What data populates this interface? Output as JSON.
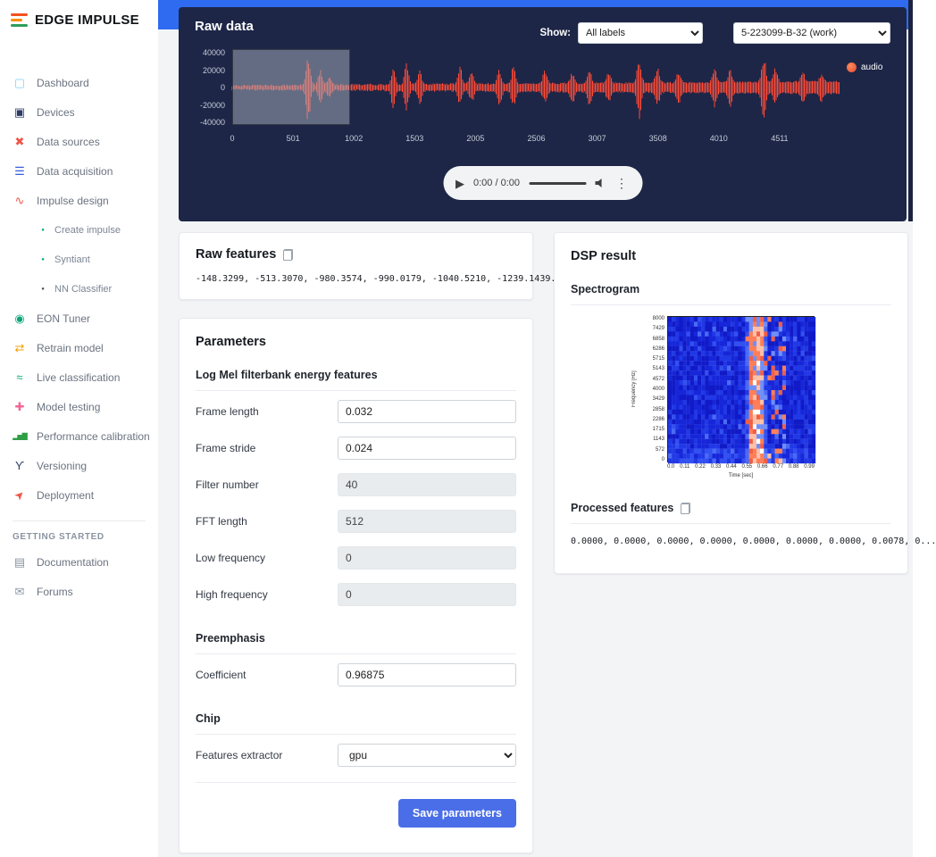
{
  "sidebar": {
    "logo_text": "EDGE IMPULSE",
    "nav_primary": [
      {
        "label": "Dashboard",
        "icon": "dashboard-icon"
      },
      {
        "label": "Devices",
        "icon": "devices-icon"
      },
      {
        "label": "Data sources",
        "icon": "data-sources-icon"
      },
      {
        "label": "Data acquisition",
        "icon": "data-acquisition-icon"
      },
      {
        "label": "Impulse design",
        "icon": "impulse-design-icon"
      }
    ],
    "impulse_sub": [
      {
        "label": "Create impulse",
        "icon": "bullet-icon"
      },
      {
        "label": "Syntiant",
        "icon": "bullet-icon"
      },
      {
        "label": "NN Classifier",
        "icon": "bullet-icon"
      }
    ],
    "nav_secondary": [
      {
        "label": "EON Tuner",
        "icon": "eon-tuner-icon"
      },
      {
        "label": "Retrain model",
        "icon": "retrain-model-icon"
      },
      {
        "label": "Live classification",
        "icon": "live-classification-icon"
      },
      {
        "label": "Model testing",
        "icon": "flask-icon"
      },
      {
        "label": "Performance calibration",
        "icon": "bar-chart-icon"
      },
      {
        "label": "Versioning",
        "icon": "branch-icon"
      },
      {
        "label": "Deployment",
        "icon": "rocket-icon"
      }
    ],
    "getting_started_label": "GETTING STARTED",
    "nav_bottom": [
      {
        "label": "Documentation",
        "icon": "document-icon"
      },
      {
        "label": "Forums",
        "icon": "chat-icon"
      }
    ]
  },
  "icons": {
    "dashboard-icon": "▢",
    "devices-icon": "▣",
    "data-sources-icon": "✖",
    "data-acquisition-icon": "☰",
    "impulse-design-icon": "∿",
    "bullet-icon": "●",
    "eon-tuner-icon": "◉",
    "retrain-model-icon": "⇄",
    "live-classification-icon": "≈",
    "flask-icon": "✚",
    "bar-chart-icon": "▂▅▇",
    "branch-icon": "ϒ",
    "rocket-icon": "➤",
    "document-icon": "▤",
    "chat-icon": "✉",
    "play-icon": "▶",
    "kebab-icon": "⋮"
  },
  "raw_data": {
    "title": "Raw data",
    "show_label": "Show:",
    "label_filter_value": "All labels",
    "sample_selector_value": "5-223099-B-32 (work)",
    "legend_label": "audio",
    "player_time": "0:00 / 0:00",
    "chart": {
      "type": "line",
      "series": "audio",
      "color": "#ff4b36",
      "y_ticks": [
        "40000",
        "20000",
        "0",
        "-20000",
        "-40000"
      ],
      "x_ticks": [
        "0",
        "501",
        "1002",
        "1503",
        "2005",
        "2506",
        "3007",
        "3508",
        "4010",
        "4511"
      ],
      "spikes": [
        [
          0.125,
          1.0
        ],
        [
          0.145,
          0.5
        ],
        [
          0.16,
          0.3
        ],
        [
          0.265,
          0.5
        ],
        [
          0.287,
          0.62
        ],
        [
          0.309,
          0.45
        ],
        [
          0.375,
          0.52
        ],
        [
          0.394,
          0.4
        ],
        [
          0.44,
          0.48
        ],
        [
          0.463,
          0.52
        ],
        [
          0.515,
          0.42
        ],
        [
          0.56,
          0.38
        ],
        [
          0.588,
          0.48
        ],
        [
          0.62,
          0.42
        ],
        [
          0.67,
          0.85
        ],
        [
          0.7,
          0.45
        ],
        [
          0.735,
          0.4
        ],
        [
          0.794,
          0.48
        ],
        [
          0.82,
          0.42
        ],
        [
          0.875,
          0.88
        ],
        [
          0.894,
          0.45
        ],
        [
          0.94,
          0.32
        ],
        [
          0.97,
          0.28
        ]
      ]
    }
  },
  "raw_features": {
    "title": "Raw features",
    "values": "-148.3299, -513.3070, -980.3574, -990.0179, -1040.5210, -1239.1439..."
  },
  "parameters": {
    "title": "Parameters",
    "sections": [
      {
        "heading": "Log Mel filterbank energy features",
        "fields": [
          {
            "label": "Frame length",
            "value": "0.032",
            "disabled": false
          },
          {
            "label": "Frame stride",
            "value": "0.024",
            "disabled": false
          },
          {
            "label": "Filter number",
            "value": "40",
            "disabled": true
          },
          {
            "label": "FFT length",
            "value": "512",
            "disabled": true
          },
          {
            "label": "Low frequency",
            "value": "0",
            "disabled": true
          },
          {
            "label": "High frequency",
            "value": "0",
            "disabled": true
          }
        ]
      },
      {
        "heading": "Preemphasis",
        "fields": [
          {
            "label": "Coefficient",
            "value": "0.96875",
            "disabled": false
          }
        ]
      },
      {
        "heading": "Chip",
        "fields": [
          {
            "label": "Features extractor",
            "value": "gpu",
            "type": "select"
          }
        ]
      }
    ],
    "save_label": "Save parameters"
  },
  "dsp_result": {
    "title": "DSP result",
    "spectrogram_heading": "Spectrogram",
    "processed_heading": "Processed features",
    "processed_values": "0.0000, 0.0000, 0.0000, 0.0000, 0.0000, 0.0000, 0.0000, 0.0078, 0...",
    "spectrogram": {
      "ylabel": "Frequency [Hz]",
      "xlabel": "Time [sec]",
      "y_ticks": [
        "8000",
        "7429",
        "6858",
        "6286",
        "5715",
        "5143",
        "4572",
        "4000",
        "3429",
        "2858",
        "2286",
        "1715",
        "1143",
        "572",
        "0"
      ],
      "x_ticks": [
        "0.0",
        "0.11",
        "0.22",
        "0.33",
        "0.44",
        "0.55",
        "0.66",
        "0.77",
        "0.88",
        "0.99"
      ]
    }
  }
}
